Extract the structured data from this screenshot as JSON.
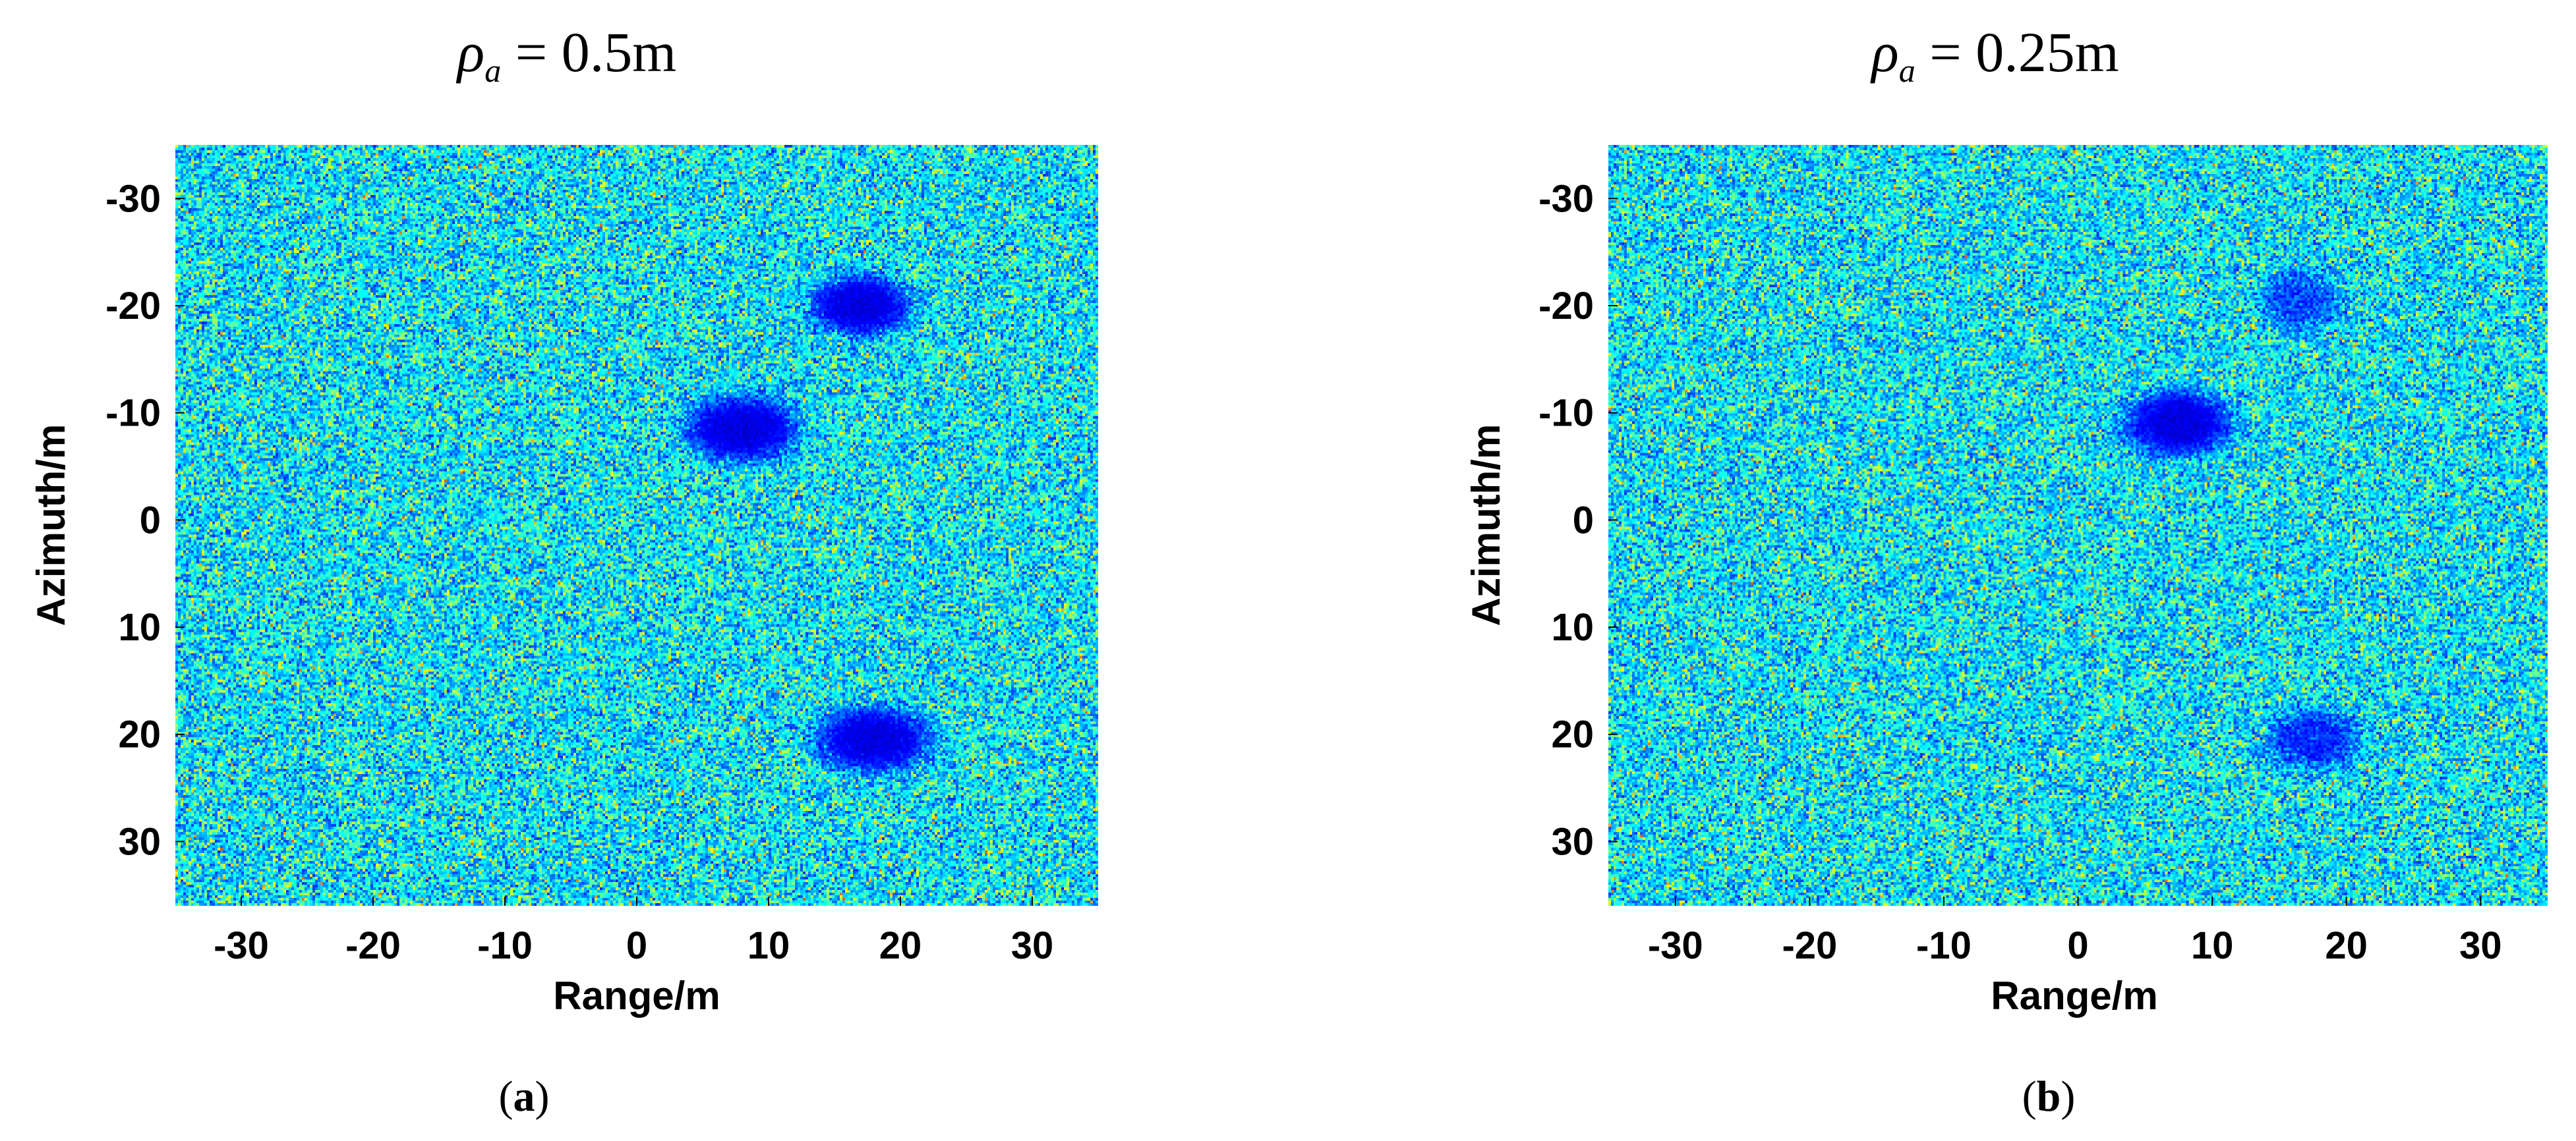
{
  "chart_data": [
    {
      "type": "heatmap",
      "panel_label": "(a)",
      "caption_letter": "a",
      "title_symbol": "ρ",
      "title_subscript": "a",
      "title_value": " = 0.5m",
      "xlabel": "Range/m",
      "ylabel": "Azimuth/m",
      "xlim": [
        -35,
        35
      ],
      "ylim": [
        -35,
        36
      ],
      "xticks": [
        -30,
        -20,
        -10,
        0,
        10,
        20,
        30
      ],
      "yticks": [
        -30,
        -20,
        -10,
        0,
        10,
        20,
        30
      ],
      "y_axis_direction": "down",
      "colormap": "jet",
      "background": "speckle noise",
      "targets": [
        {
          "x": 17,
          "y": -20,
          "rx": 4,
          "ry": 3,
          "strength": 0.95
        },
        {
          "x": 8,
          "y": -8.5,
          "rx": 4.5,
          "ry": 3.2,
          "strength": 0.95
        },
        {
          "x": 18,
          "y": 20.5,
          "rx": 4.5,
          "ry": 3.2,
          "strength": 0.95
        }
      ]
    },
    {
      "type": "heatmap",
      "panel_label": "(b)",
      "caption_letter": "b",
      "title_symbol": "ρ",
      "title_subscript": "a",
      "title_value": " = 0.25m",
      "xlabel": "Range/m",
      "ylabel": "Azimuth/m",
      "xlim": [
        -35,
        35
      ],
      "ylim": [
        -35,
        36
      ],
      "xticks": [
        -30,
        -20,
        -10,
        0,
        10,
        20,
        30
      ],
      "yticks": [
        -30,
        -20,
        -10,
        0,
        10,
        20,
        30
      ],
      "y_axis_direction": "down",
      "colormap": "jet",
      "background": "speckle noise",
      "targets": [
        {
          "x": 16.5,
          "y": -20.5,
          "rx": 3,
          "ry": 3,
          "strength": 0.6
        },
        {
          "x": 7.5,
          "y": -9,
          "rx": 4.2,
          "ry": 3.2,
          "strength": 0.95
        },
        {
          "x": 17.5,
          "y": 20.5,
          "rx": 3.5,
          "ry": 3,
          "strength": 0.7
        }
      ]
    }
  ]
}
